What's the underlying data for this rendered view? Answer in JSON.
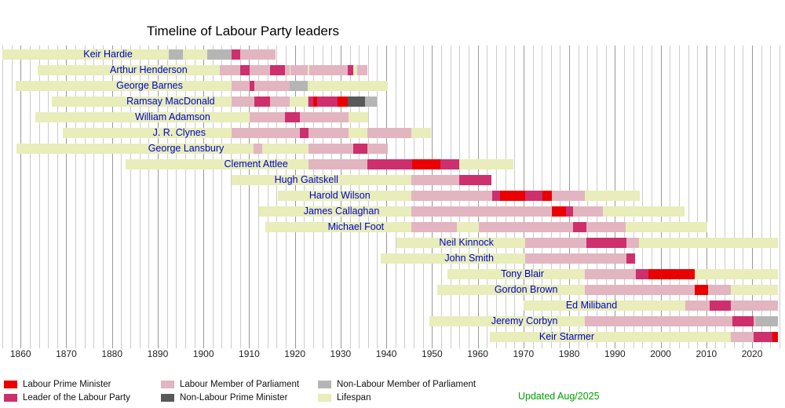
{
  "title": "Timeline of Labour Party leaders",
  "updated_note": "Updated Aug/2025",
  "axis": {
    "min_year": 1855.5,
    "max_year": 2027.2,
    "grid_min": 1856,
    "grid_max": 2026,
    "grid_step": 2,
    "tick_step": 10
  },
  "colors": {
    "pm": "#ea0000",
    "leader": "#ce2f6d",
    "mp": "#e2b5c0",
    "nlpm": "#595959",
    "nlmp": "#b5b5b5",
    "life": "#e8edba",
    "grid_minor": "#cccccc",
    "grid_major": "#999999",
    "name_text": "#0000cc",
    "updated_text": "#00a000"
  },
  "legend": {
    "items": [
      {
        "key": "pm",
        "label": "Labour Prime Minister"
      },
      {
        "key": "mp",
        "label": "Labour Member of Parliament"
      },
      {
        "key": "nlmp",
        "label": "Non-Labour Member of Parliament"
      },
      {
        "key": "leader",
        "label": "Leader of the Labour Party"
      },
      {
        "key": "nlpm",
        "label": "Non-Labour Prime Minister"
      },
      {
        "key": "life",
        "label": "Lifespan"
      }
    ]
  },
  "chart_data": {
    "type": "timeline",
    "title": "Timeline of Labour Party leaders",
    "x_axis": {
      "unit": "year",
      "range": [
        1856,
        2026
      ],
      "ticks": [
        1860,
        1870,
        1880,
        1890,
        1900,
        1910,
        1920,
        1930,
        1940,
        1950,
        1960,
        1970,
        1980,
        1990,
        2000,
        2010,
        2020
      ]
    },
    "segment_types": {
      "pm": "Labour Prime Minister",
      "leader": "Leader of the Labour Party",
      "mp": "Labour Member of Parliament",
      "nlpm": "Non-Labour Prime Minister",
      "nlmp": "Non-Labour Member of Parliament",
      "life": "Lifespan"
    },
    "leaders": [
      {
        "name": "Keir Hardie",
        "life": [
          1856.0,
          1915.7
        ],
        "label_end": 1885,
        "segments": [
          {
            "t": "nlmp",
            "s": 1892.5,
            "e": 1895.5
          },
          {
            "t": "nlmp",
            "s": 1900.75,
            "e": 1906.1
          },
          {
            "t": "mp",
            "s": 1906.1,
            "e": 1915.7
          },
          {
            "t": "leader",
            "s": 1906.1,
            "e": 1908.1
          }
        ]
      },
      {
        "name": "Arthur Henderson",
        "life": [
          1863.7,
          1935.8
        ],
        "label_end": 1897,
        "segments": [
          {
            "t": "mp",
            "s": 1903.6,
            "e": 1918.9
          },
          {
            "t": "mp",
            "s": 1919.1,
            "e": 1922.8
          },
          {
            "t": "mp",
            "s": 1923.1,
            "e": 1931.8
          },
          {
            "t": "mp",
            "s": 1933.7,
            "e": 1935.8
          },
          {
            "t": "leader",
            "s": 1908.1,
            "e": 1910.1
          },
          {
            "t": "leader",
            "s": 1914.6,
            "e": 1917.8
          },
          {
            "t": "leader",
            "s": 1931.6,
            "e": 1932.8
          }
        ]
      },
      {
        "name": "George Barnes",
        "life": [
          1859.0,
          1940.3
        ],
        "label_end": 1896,
        "segments": [
          {
            "t": "mp",
            "s": 1906.1,
            "e": 1918.9
          },
          {
            "t": "leader",
            "s": 1910.1,
            "e": 1911.1
          },
          {
            "t": "nlmp",
            "s": 1918.9,
            "e": 1922.8
          }
        ]
      },
      {
        "name": "Ramsay MacDonald",
        "life": [
          1866.8,
          1937.9
        ],
        "label_end": 1903,
        "segments": [
          {
            "t": "mp",
            "s": 1906.1,
            "e": 1918.9
          },
          {
            "t": "leader",
            "s": 1911.1,
            "e": 1914.6
          },
          {
            "t": "mp",
            "s": 1922.8,
            "e": 1931.6
          },
          {
            "t": "leader",
            "s": 1922.9,
            "e": 1931.6
          },
          {
            "t": "pm",
            "s": 1924.05,
            "e": 1924.85
          },
          {
            "t": "pm",
            "s": 1929.4,
            "e": 1931.6
          },
          {
            "t": "nlpm",
            "s": 1931.6,
            "e": 1935.4
          },
          {
            "t": "nlmp",
            "s": 1935.4,
            "e": 1937.9
          }
        ]
      },
      {
        "name": "William Adamson",
        "life": [
          1863.3,
          1936.1
        ],
        "label_end": 1902,
        "segments": [
          {
            "t": "mp",
            "s": 1910.1,
            "e": 1931.8
          },
          {
            "t": "leader",
            "s": 1917.8,
            "e": 1921.1
          }
        ]
      },
      {
        "name": "J. R. Clynes",
        "life": [
          1869.2,
          1949.8
        ],
        "label_end": 1901,
        "segments": [
          {
            "t": "mp",
            "s": 1906.1,
            "e": 1931.8
          },
          {
            "t": "leader",
            "s": 1921.1,
            "e": 1922.9
          },
          {
            "t": "mp",
            "s": 1935.9,
            "e": 1945.5
          }
        ]
      },
      {
        "name": "George Lansbury",
        "life": [
          1859.1,
          1940.4
        ],
        "label_end": 1905,
        "segments": [
          {
            "t": "mp",
            "s": 1910.9,
            "e": 1912.9
          },
          {
            "t": "mp",
            "s": 1922.9,
            "e": 1940.4
          },
          {
            "t": "leader",
            "s": 1932.8,
            "e": 1935.8
          }
        ]
      },
      {
        "name": "Clement Attlee",
        "life": [
          1883.0,
          1967.8
        ],
        "label_end": 1919,
        "segments": [
          {
            "t": "mp",
            "s": 1922.9,
            "e": 1955.4
          },
          {
            "t": "leader",
            "s": 1935.9,
            "e": 1955.95
          },
          {
            "t": "pm",
            "s": 1945.6,
            "e": 1951.8
          }
        ]
      },
      {
        "name": "Hugh Gaitskell",
        "life": [
          1906.1,
          1963.05
        ],
        "label_end": 1930,
        "segments": [
          {
            "t": "mp",
            "s": 1945.5,
            "e": 1963.05
          },
          {
            "t": "leader",
            "s": 1955.95,
            "e": 1963.05
          }
        ]
      },
      {
        "name": "Harold Wilson",
        "life": [
          1916.2,
          1995.4
        ],
        "label_end": 1937,
        "segments": [
          {
            "t": "mp",
            "s": 1945.5,
            "e": 1983.4
          },
          {
            "t": "leader",
            "s": 1963.1,
            "e": 1976.25
          },
          {
            "t": "pm",
            "s": 1964.8,
            "e": 1970.45
          },
          {
            "t": "pm",
            "s": 1974.15,
            "e": 1976.25
          }
        ]
      },
      {
        "name": "James Callaghan",
        "life": [
          1912.2,
          2005.2
        ],
        "label_end": 1939,
        "segments": [
          {
            "t": "mp",
            "s": 1945.5,
            "e": 1987.4
          },
          {
            "t": "leader",
            "s": 1976.25,
            "e": 1980.85
          },
          {
            "t": "pm",
            "s": 1976.25,
            "e": 1979.35
          }
        ]
      },
      {
        "name": "Michael Foot",
        "life": [
          1913.5,
          2010.2
        ],
        "label_end": 1940,
        "segments": [
          {
            "t": "mp",
            "s": 1945.5,
            "e": 1955.4
          },
          {
            "t": "mp",
            "s": 1960.3,
            "e": 1992.3
          },
          {
            "t": "leader",
            "s": 1980.85,
            "e": 1983.75
          }
        ]
      },
      {
        "name": "Neil Kinnock",
        "life": [
          1942.2,
          2025.6
        ],
        "label_end": 1964,
        "segments": [
          {
            "t": "mp",
            "s": 1970.45,
            "e": 1995.3
          },
          {
            "t": "leader",
            "s": 1983.75,
            "e": 1992.55
          }
        ]
      },
      {
        "name": "John Smith",
        "life": [
          1938.7,
          1994.35
        ],
        "label_end": 1964,
        "segments": [
          {
            "t": "mp",
            "s": 1970.45,
            "e": 1994.35
          },
          {
            "t": "leader",
            "s": 1992.55,
            "e": 1994.35
          }
        ]
      },
      {
        "name": "Tony Blair",
        "life": [
          1953.3,
          2025.6
        ],
        "label_end": 1975,
        "segments": [
          {
            "t": "mp",
            "s": 1983.4,
            "e": 2007.45
          },
          {
            "t": "leader",
            "s": 1994.55,
            "e": 2007.5
          },
          {
            "t": "pm",
            "s": 1997.35,
            "e": 2007.5
          }
        ]
      },
      {
        "name": "Gordon Brown",
        "life": [
          1951.1,
          2025.6
        ],
        "label_end": 1978,
        "segments": [
          {
            "t": "mp",
            "s": 1983.4,
            "e": 2015.3
          },
          {
            "t": "leader",
            "s": 2007.5,
            "e": 2010.35
          },
          {
            "t": "pm",
            "s": 2007.5,
            "e": 2010.35
          }
        ]
      },
      {
        "name": "Ed Miliband",
        "life": [
          1969.95,
          2025.6
        ],
        "label_end": 1991,
        "segments": [
          {
            "t": "mp",
            "s": 2005.35,
            "e": 2025.6
          },
          {
            "t": "leader",
            "s": 2010.7,
            "e": 2015.35
          }
        ]
      },
      {
        "name": "Jeremy Corbyn",
        "life": [
          1949.4,
          2025.6
        ],
        "label_end": 1978,
        "segments": [
          {
            "t": "mp",
            "s": 1983.4,
            "e": 2020.85
          },
          {
            "t": "leader",
            "s": 2015.7,
            "e": 2020.25
          },
          {
            "t": "nlmp",
            "s": 2020.85,
            "e": 2025.6
          }
        ]
      },
      {
        "name": "Keir Starmer",
        "life": [
          1962.65,
          2025.6
        ],
        "label_end": 1986,
        "segments": [
          {
            "t": "mp",
            "s": 2015.3,
            "e": 2025.6
          },
          {
            "t": "leader",
            "s": 2020.25,
            "e": 2025.6
          },
          {
            "t": "pm",
            "s": 2024.5,
            "e": 2025.6
          }
        ]
      }
    ]
  }
}
